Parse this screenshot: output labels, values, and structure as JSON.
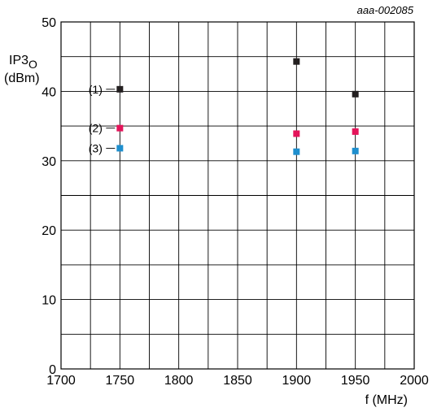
{
  "chart_data": {
    "type": "scatter",
    "title": "",
    "reference": "aaa-002085",
    "ylabel_main": "IP3",
    "ylabel_sub": "O",
    "ylabel_unit": "(dBm)",
    "xlabel": "f (MHz)",
    "xlim": [
      1700,
      2000
    ],
    "ylim": [
      0,
      50
    ],
    "x_ticks": [
      "1700",
      "1750",
      "1800",
      "1850",
      "1900",
      "1950",
      "2000"
    ],
    "y_ticks": [
      "0",
      "10",
      "20",
      "30",
      "40",
      "50"
    ],
    "grid": true,
    "series": [
      {
        "name": "(1)",
        "color": "#231f20",
        "x": [
          1750,
          1900,
          1950
        ],
        "y": [
          40.3,
          44.3,
          39.6
        ]
      },
      {
        "name": "(2)",
        "color": "#e4145a",
        "x": [
          1750,
          1900,
          1950
        ],
        "y": [
          34.7,
          33.9,
          34.2
        ]
      },
      {
        "name": "(3)",
        "color": "#1e8fce",
        "x": [
          1750,
          1900,
          1950
        ],
        "y": [
          31.8,
          31.3,
          31.4
        ]
      }
    ]
  }
}
